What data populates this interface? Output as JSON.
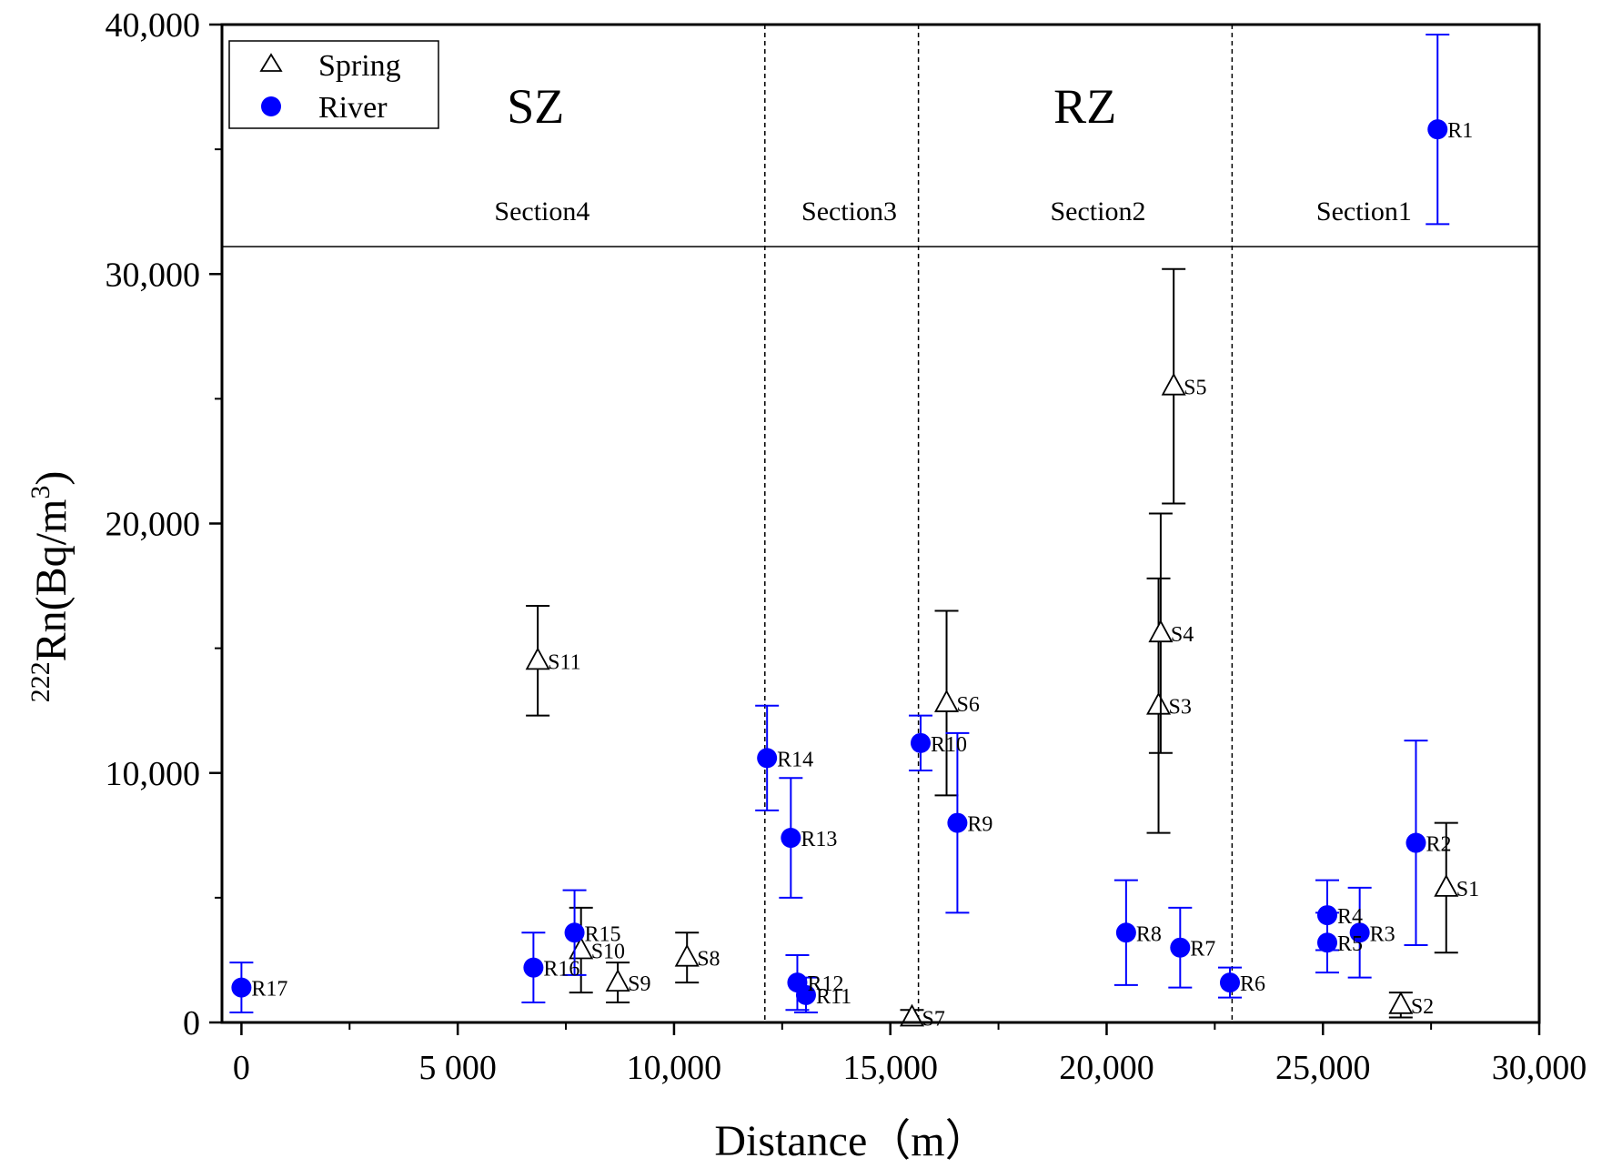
{
  "chart_data": {
    "type": "scatter",
    "title": "",
    "xlabel": "Distance（m）",
    "ylabel_superscript": "222",
    "ylabel_main": "Rn(Bq/m",
    "ylabel_exponent": "3",
    "ylabel_close": ")",
    "xlim": [
      -450,
      30000
    ],
    "ylim": [
      0,
      40000
    ],
    "x_ticks": [
      {
        "value": 0,
        "label": "0"
      },
      {
        "value": 5000,
        "label": "5 000"
      },
      {
        "value": 10000,
        "label": "10,000"
      },
      {
        "value": 15000,
        "label": "15,000"
      },
      {
        "value": 20000,
        "label": "20,000"
      },
      {
        "value": 25000,
        "label": "25,000"
      },
      {
        "value": 30000,
        "label": "30,000"
      }
    ],
    "y_ticks": [
      {
        "value": 0,
        "label": "0"
      },
      {
        "value": 10000,
        "label": "10,000"
      },
      {
        "value": 20000,
        "label": "20,000"
      },
      {
        "value": 30000,
        "label": "30,000"
      },
      {
        "value": 40000,
        "label": "40,000"
      }
    ],
    "legend": {
      "position": "top-left",
      "entries": [
        {
          "name": "Spring",
          "marker": "open-triangle",
          "color": "#000000"
        },
        {
          "name": "River",
          "marker": "filled-circle",
          "color": "#0000ff"
        }
      ]
    },
    "zones": [
      {
        "label": "SZ",
        "x": 6800
      },
      {
        "label": "RZ",
        "x": 19500
      }
    ],
    "section_boundaries": [
      12100,
      15650,
      22900
    ],
    "header_line_y": 31100,
    "sections": [
      {
        "label": "Section4",
        "x": 6950
      },
      {
        "label": "Section3",
        "x": 14050
      },
      {
        "label": "Section2",
        "x": 19800
      },
      {
        "label": "Section1",
        "x": 25950
      }
    ],
    "series": [
      {
        "name": "Spring",
        "color": "#000000",
        "points": [
          {
            "label": "S1",
            "x": 27850,
            "y": 5400,
            "err": 2600
          },
          {
            "label": "S2",
            "x": 26800,
            "y": 700,
            "err": 500
          },
          {
            "label": "S3",
            "x": 21200,
            "y": 12700,
            "err": 5100
          },
          {
            "label": "S4",
            "x": 21250,
            "y": 15600,
            "err": 4800
          },
          {
            "label": "S5",
            "x": 21550,
            "y": 25500,
            "err": 4700
          },
          {
            "label": "S6",
            "x": 16300,
            "y": 12800,
            "err": 3700
          },
          {
            "label": "S7",
            "x": 15500,
            "y": 200,
            "err": 300
          },
          {
            "label": "S8",
            "x": 10300,
            "y": 2600,
            "err": 1000
          },
          {
            "label": "S9",
            "x": 8700,
            "y": 1600,
            "err": 800
          },
          {
            "label": "S10",
            "x": 7850,
            "y": 2900,
            "err": 1700
          },
          {
            "label": "S11",
            "x": 6850,
            "y": 14500,
            "err": 2200
          }
        ]
      },
      {
        "name": "River",
        "color": "#0000ff",
        "points": [
          {
            "label": "R1",
            "x": 27650,
            "y": 35800,
            "err": 3800
          },
          {
            "label": "R2",
            "x": 27150,
            "y": 7200,
            "err": 4100
          },
          {
            "label": "R3",
            "x": 25850,
            "y": 3600,
            "err": 1800
          },
          {
            "label": "R4",
            "x": 25100,
            "y": 4300,
            "err": 1400
          },
          {
            "label": "R5",
            "x": 25100,
            "y": 3200,
            "err": 1200
          },
          {
            "label": "R6",
            "x": 22850,
            "y": 1600,
            "err": 600
          },
          {
            "label": "R7",
            "x": 21700,
            "y": 3000,
            "err": 1600
          },
          {
            "label": "R8",
            "x": 20450,
            "y": 3600,
            "err": 2100
          },
          {
            "label": "R9",
            "x": 16550,
            "y": 8000,
            "err": 3600
          },
          {
            "label": "R10",
            "x": 15700,
            "y": 11200,
            "err": 1100
          },
          {
            "label": "R11",
            "x": 13050,
            "y": 1100,
            "err": 700
          },
          {
            "label": "R12",
            "x": 12850,
            "y": 1600,
            "err": 1100
          },
          {
            "label": "R13",
            "x": 12700,
            "y": 7400,
            "err": 2400
          },
          {
            "label": "R14",
            "x": 12150,
            "y": 10600,
            "err": 2100
          },
          {
            "label": "R15",
            "x": 7700,
            "y": 3600,
            "err": 1700
          },
          {
            "label": "R16",
            "x": 6750,
            "y": 2200,
            "err": 1400
          },
          {
            "label": "R17",
            "x": 0,
            "y": 1400,
            "err": 1000
          }
        ]
      }
    ]
  }
}
